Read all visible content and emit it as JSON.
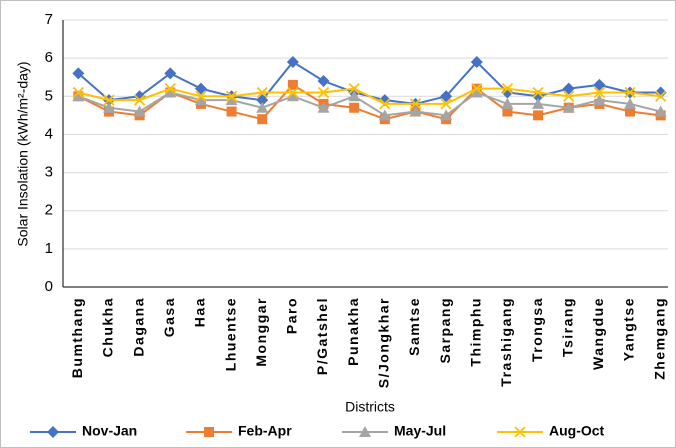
{
  "chart_data": {
    "type": "line",
    "x_label": "Districts",
    "y_label": "Solar Insolation (kWh/m²-day)",
    "categories": [
      "Bumthang",
      "Chukha",
      "Dagana",
      "Gasa",
      "Haa",
      "Lhuentse",
      "Monggar",
      "Paro",
      "P/Gatshel",
      "Punakha",
      "S/Jongkhar",
      "Samtse",
      "Sarpang",
      "Thimphu",
      "Trashigang",
      "Trongsa",
      "Tsirang",
      "Wangdue",
      "Yangtse",
      "Zhemgang"
    ],
    "series": [
      {
        "name": "Nov-Jan",
        "color": "#4472c4",
        "marker": "diamond",
        "values": [
          5.6,
          4.9,
          5.0,
          5.6,
          5.2,
          5.0,
          4.9,
          5.9,
          5.4,
          5.1,
          4.9,
          4.8,
          5.0,
          5.9,
          5.1,
          5.0,
          5.2,
          5.3,
          5.1,
          5.1
        ]
      },
      {
        "name": "Feb-Apr",
        "color": "#ed7d31",
        "marker": "square",
        "values": [
          5.0,
          4.6,
          4.5,
          5.1,
          4.8,
          4.6,
          4.4,
          5.3,
          4.8,
          4.7,
          4.4,
          4.6,
          4.4,
          5.2,
          4.6,
          4.5,
          4.7,
          4.8,
          4.6,
          4.5
        ]
      },
      {
        "name": "May-Jul",
        "color": "#a5a5a5",
        "marker": "triangle",
        "values": [
          5.0,
          4.7,
          4.6,
          5.1,
          4.9,
          4.9,
          4.7,
          5.0,
          4.7,
          5.0,
          4.5,
          4.6,
          4.5,
          5.1,
          4.8,
          4.8,
          4.7,
          4.9,
          4.8,
          4.6
        ]
      },
      {
        "name": "Aug-Oct",
        "color": "#ffc000",
        "marker": "x",
        "values": [
          5.1,
          4.9,
          4.9,
          5.2,
          5.0,
          5.0,
          5.1,
          5.1,
          5.1,
          5.2,
          4.8,
          4.8,
          4.8,
          5.2,
          5.2,
          5.1,
          5.0,
          5.1,
          5.1,
          5.0
        ]
      }
    ],
    "ylim": [
      0,
      7
    ],
    "yticks": [
      0,
      1,
      2,
      3,
      4,
      5,
      6,
      7
    ],
    "grid": true
  }
}
